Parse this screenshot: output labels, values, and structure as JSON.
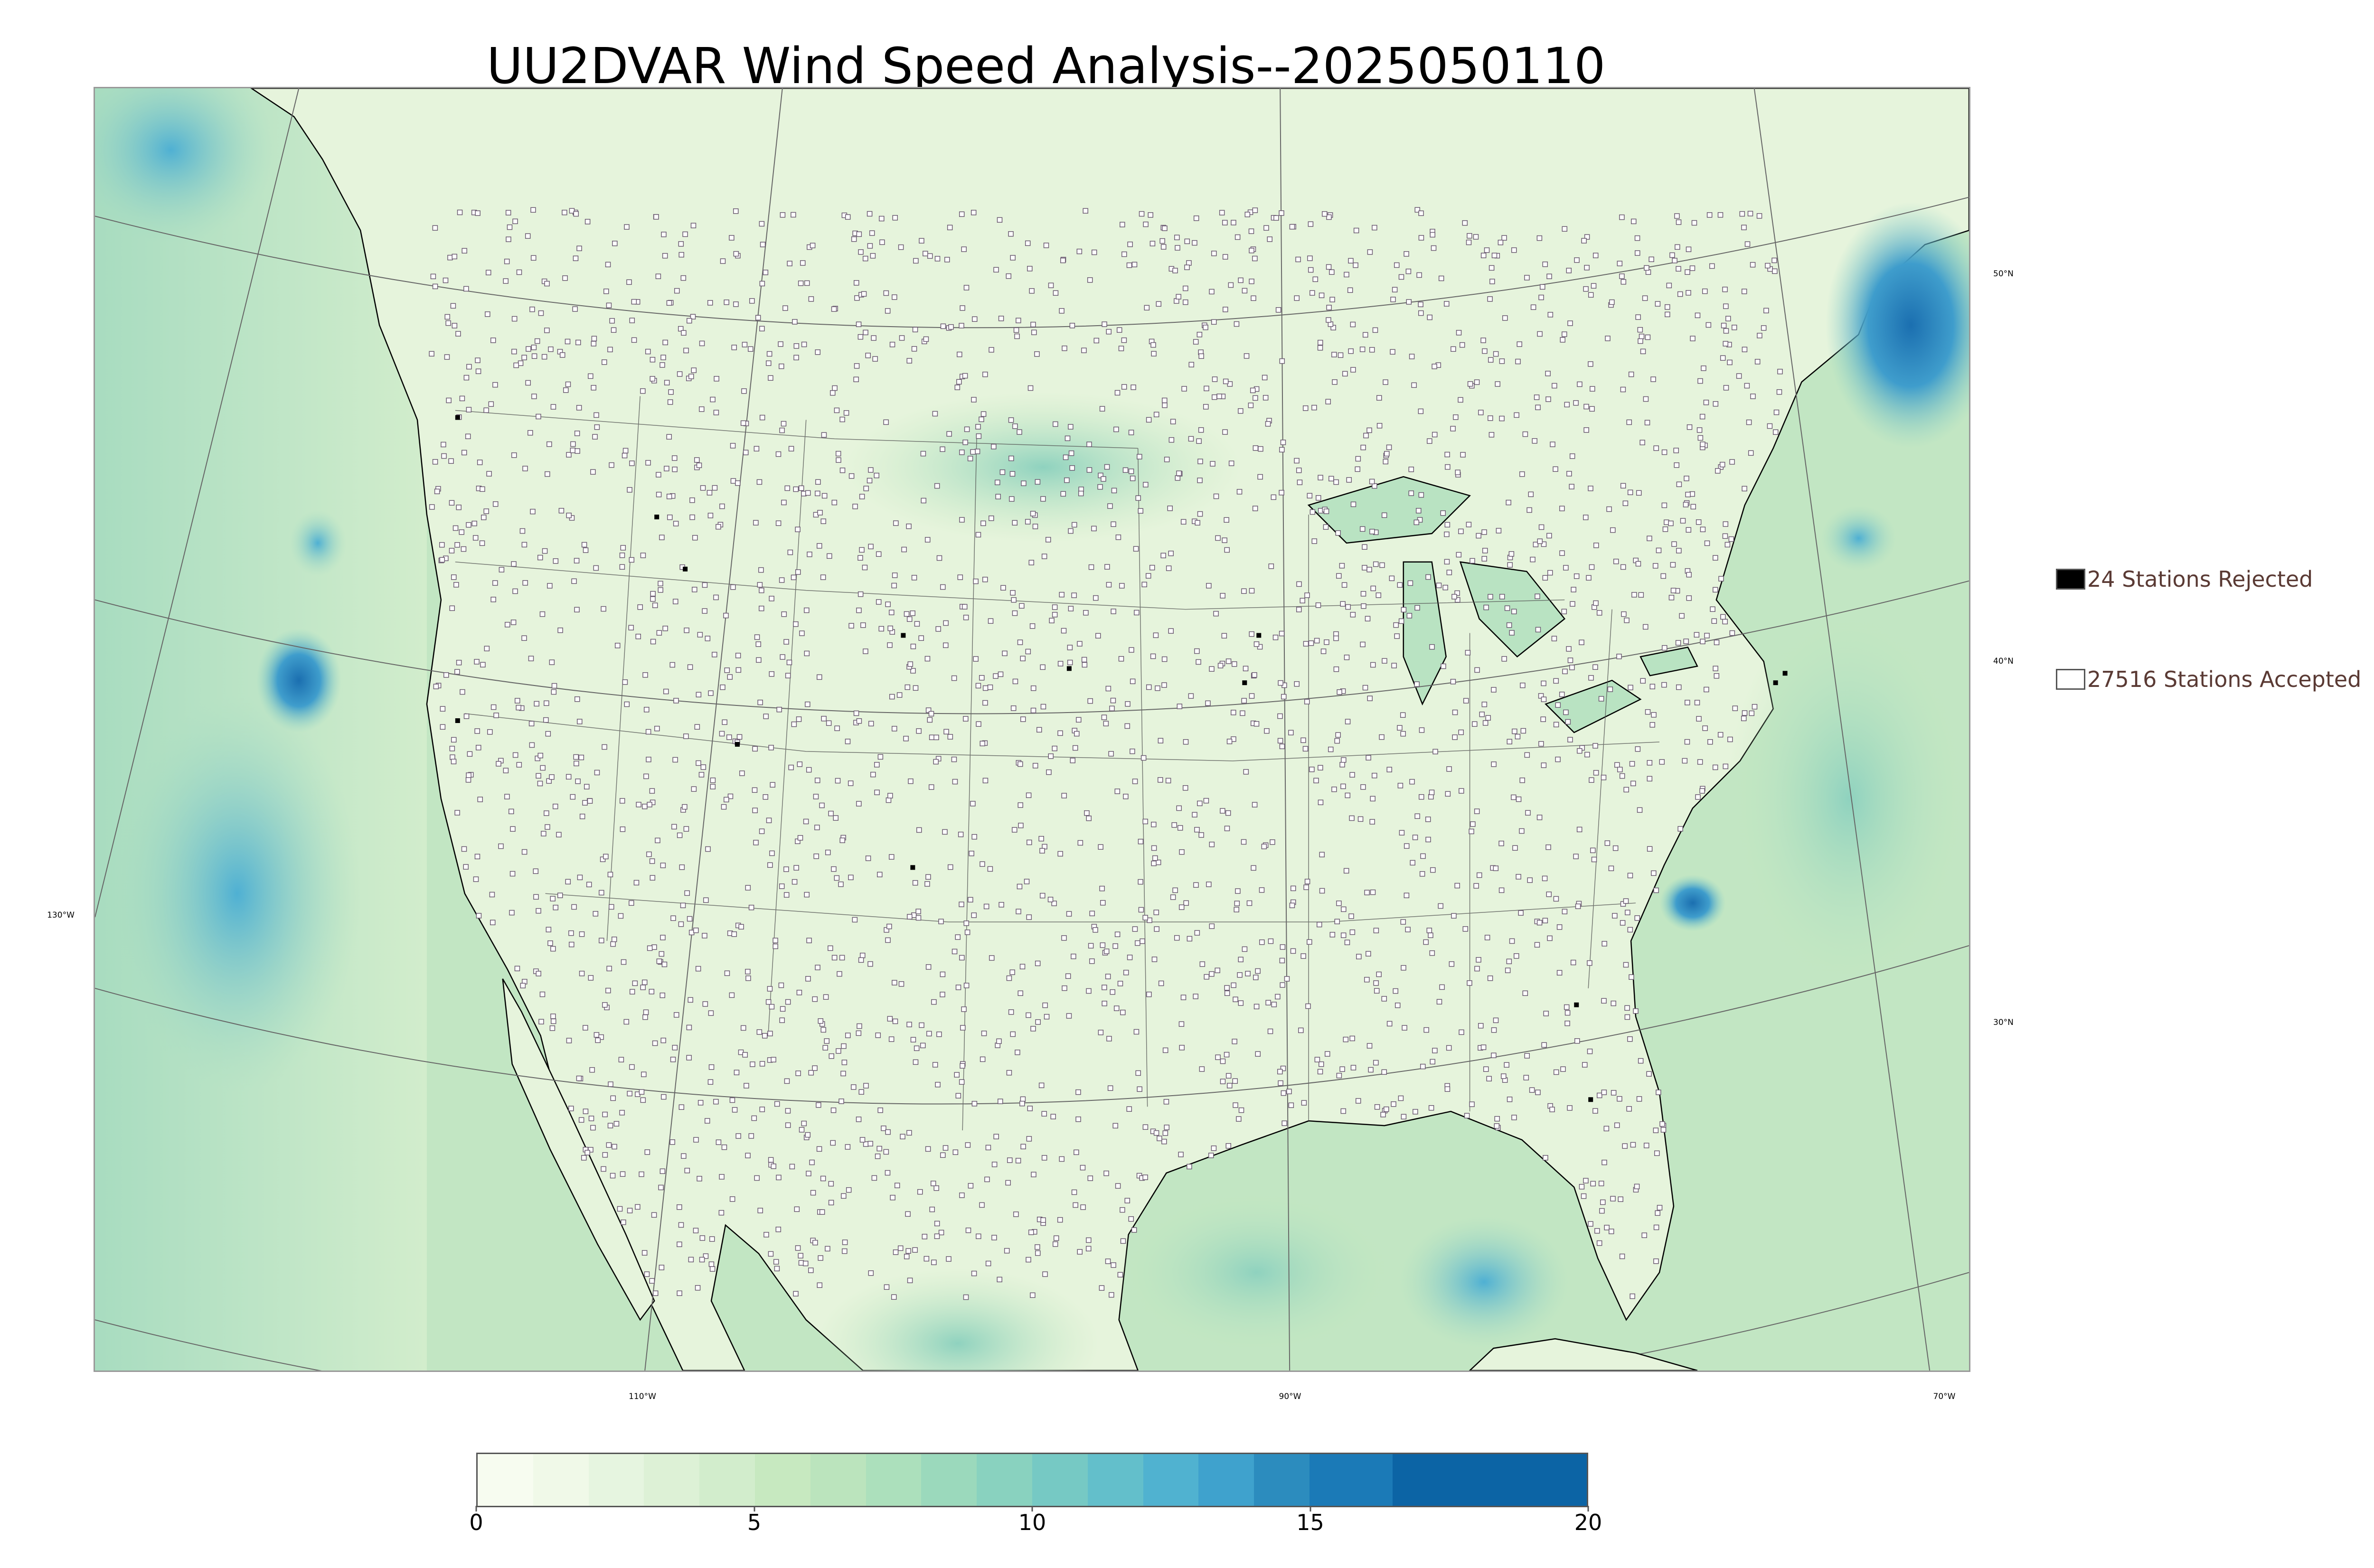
{
  "title": "UU2DVAR Wind Speed Analysis--2025050110",
  "map": {
    "lat_labels": [
      {
        "text": "50°N",
        "lat": 50
      },
      {
        "text": "40°N",
        "lat": 40
      },
      {
        "text": "30°N",
        "lat": 30
      }
    ],
    "lon_labels": [
      {
        "text": "130°W",
        "lon": -130
      },
      {
        "text": "110°W",
        "lon": -110
      },
      {
        "text": "90°W",
        "lon": -90
      },
      {
        "text": "70°W",
        "lon": -70
      }
    ],
    "colors": {
      "land_base": "#eaf6e2",
      "ocean_base": "#b6e3bf",
      "coastline": "#000000",
      "grid": "#666666"
    }
  },
  "legend": {
    "rejected": {
      "label": "24 Stations Rejected",
      "color": "#000000"
    },
    "accepted": {
      "label": "27516 Stations Accepted",
      "color": "#ffffff"
    }
  },
  "colorbar": {
    "min": 0,
    "max": 20,
    "ticks": [
      "0",
      "5",
      "10",
      "15",
      "20"
    ],
    "colors": [
      "#f7fcf0",
      "#f0f9e8",
      "#e6f5e0",
      "#ddf1d6",
      "#d2edcc",
      "#c7e9c0",
      "#bbe4bd",
      "#ace0bc",
      "#9bd9bc",
      "#89d2bf",
      "#76c9c4",
      "#63bfcb",
      "#50b2d0",
      "#3fa2cd",
      "#2c8cbe",
      "#1b7ab7",
      "#0c64a5"
    ],
    "bounds": [
      0,
      1,
      2,
      3,
      4,
      5,
      6,
      7,
      8,
      9,
      10,
      11,
      12,
      13,
      14,
      15,
      16.5,
      20
    ]
  }
}
